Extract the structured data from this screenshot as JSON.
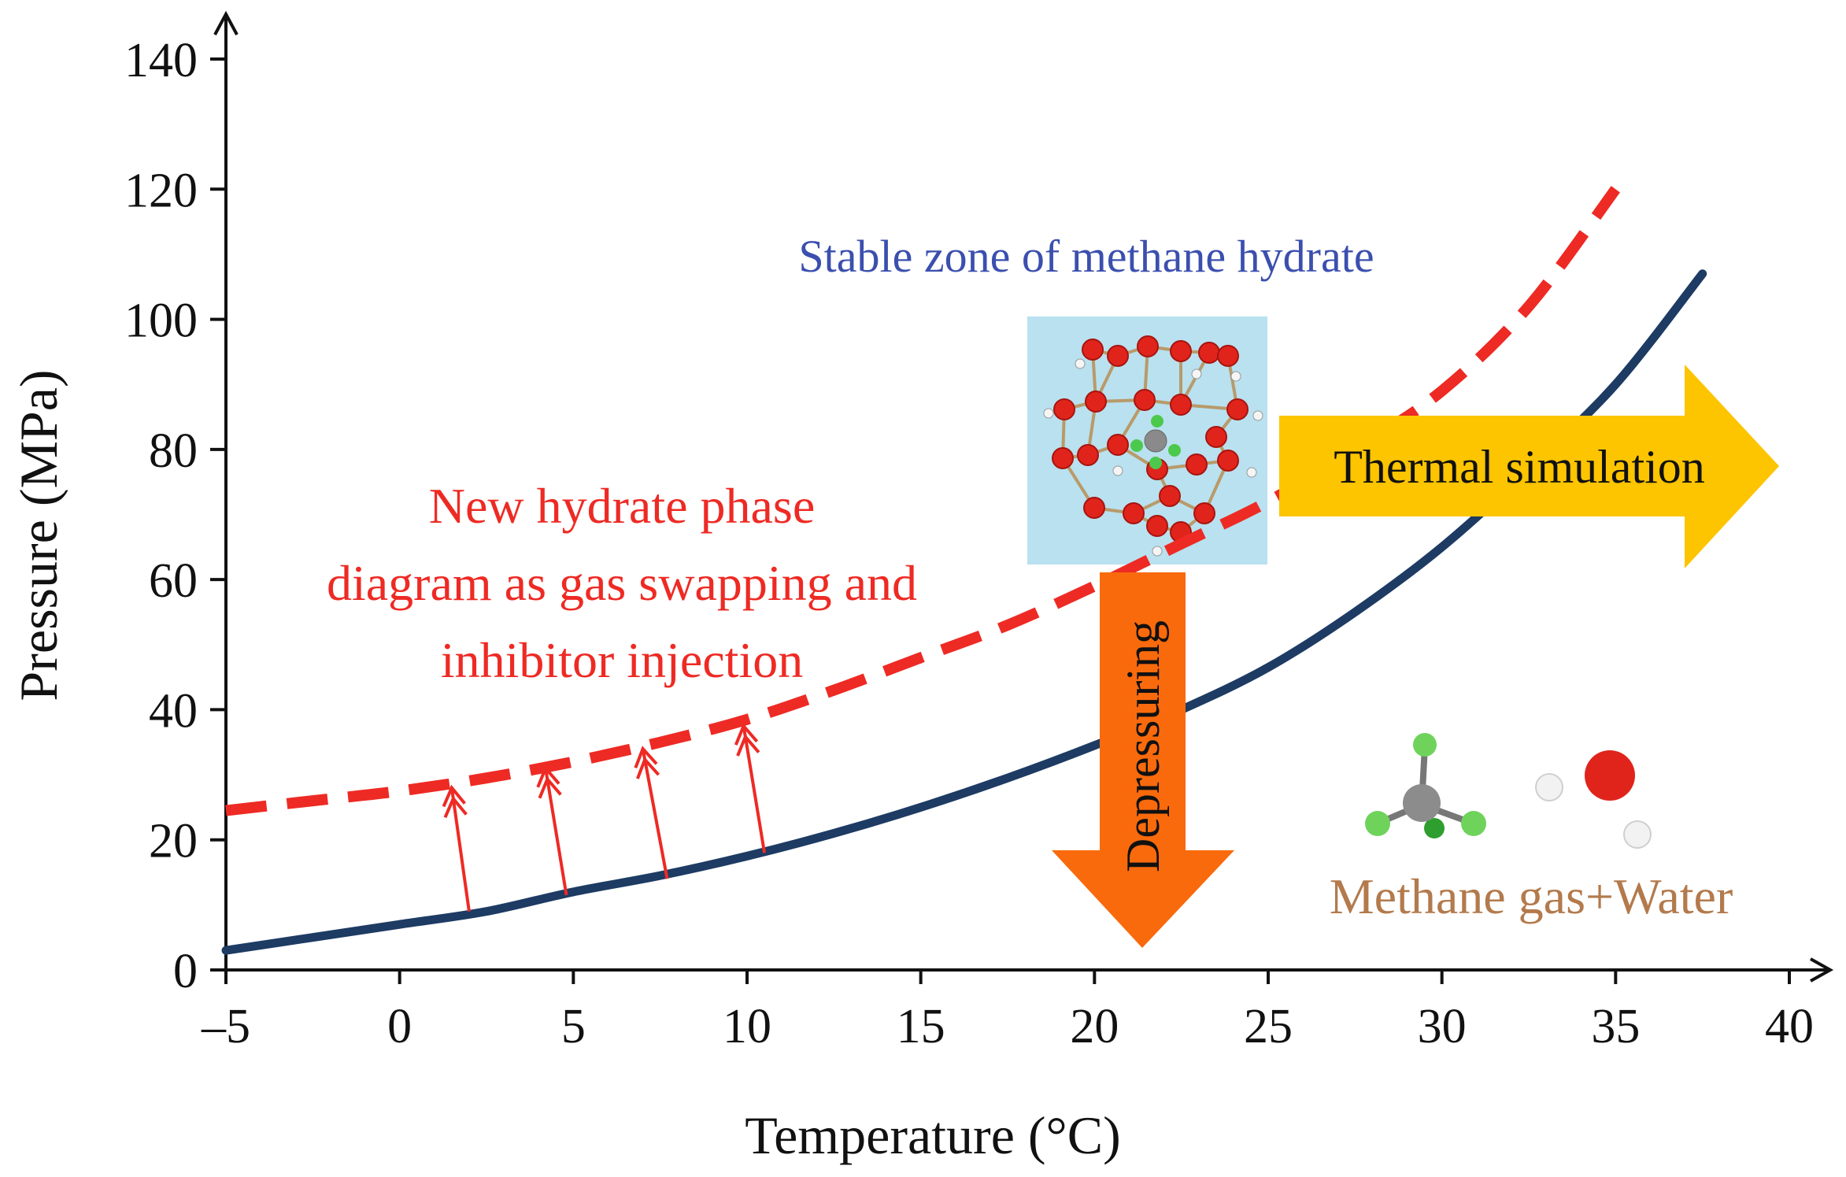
{
  "chart_data": {
    "type": "line",
    "xlabel": "Temperature (°C)",
    "ylabel": "Pressure (MPa)",
    "xlim": [
      -5,
      40
    ],
    "ylim": [
      0,
      140
    ],
    "xticks": [
      -5,
      0,
      5,
      10,
      15,
      20,
      25,
      30,
      35,
      40
    ],
    "xtick_labels": [
      "–5",
      "0",
      "5",
      "10",
      "15",
      "20",
      "25",
      "30",
      "35",
      "40"
    ],
    "yticks": [
      0,
      20,
      40,
      60,
      80,
      100,
      120,
      140
    ],
    "ytick_labels": [
      "0",
      "20",
      "40",
      "60",
      "80",
      "100",
      "120",
      "140"
    ],
    "series": [
      {
        "style": "solid",
        "color": "#1d3b63",
        "x": [
          -5,
          -2.5,
          0,
          2.5,
          5,
          7.5,
          10,
          12.5,
          15,
          17.5,
          20,
          22.5,
          25,
          27.5,
          30,
          32.5,
          35,
          37.5
        ],
        "y": [
          3,
          5,
          7,
          9,
          12,
          14.5,
          17.5,
          21,
          25,
          29.5,
          34.5,
          40,
          46.5,
          55,
          65,
          77,
          90,
          107
        ]
      },
      {
        "style": "dashed",
        "color": "#ee2a24",
        "x": [
          -5,
          -2.5,
          0,
          2.5,
          5,
          7.5,
          10,
          12.5,
          15,
          17.5,
          20,
          22.5,
          25,
          27.5,
          30,
          32.5,
          35
        ],
        "y": [
          24.5,
          26,
          27.5,
          29.5,
          32,
          35,
          38.5,
          43,
          48,
          53,
          59,
          65.5,
          72,
          80,
          89,
          102,
          120
        ]
      }
    ],
    "shift_arrows": [
      {
        "x0": 2,
        "y0": 9,
        "x1": 1.5,
        "y1": 28
      },
      {
        "x0": 4.8,
        "y0": 11.5,
        "x1": 4.2,
        "y1": 31
      },
      {
        "x0": 7.7,
        "y0": 14,
        "x1": 7,
        "y1": 34
      },
      {
        "x0": 10.5,
        "y0": 18,
        "x1": 9.9,
        "y1": 37.5
      }
    ],
    "annotations": {
      "stable_zone": "Stable zone of methane hydrate",
      "new_phase_line1": "New hydrate phase",
      "new_phase_line2": "diagram as gas swapping and",
      "new_phase_line3": "inhibitor injection",
      "thermal": "Thermal simulation",
      "depressuring": "Depressuring",
      "methane_water": "Methane gas+Water"
    },
    "colors": {
      "thermal_arrow": "#fdc400",
      "depress_arrow": "#f96a0c",
      "crystal_bg": "#b9e1ef",
      "oxygen": "#e0241c",
      "carbon": "#8a8a8a",
      "hydrogen_green": "#4cc94c"
    }
  }
}
